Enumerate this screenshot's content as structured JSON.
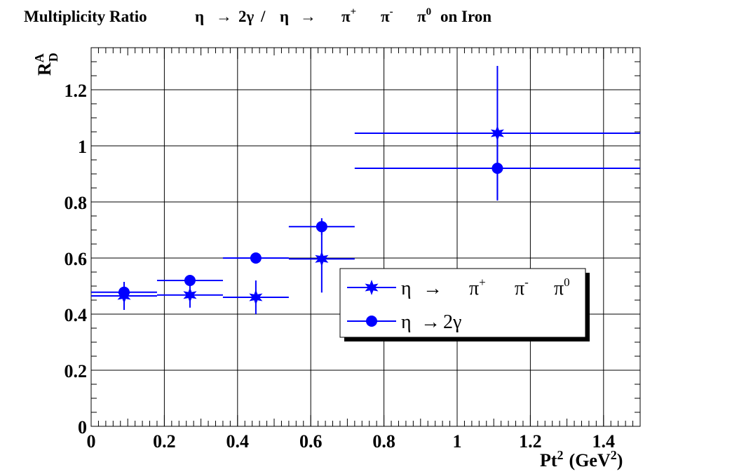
{
  "chart_data": {
    "type": "scatter",
    "title": "Multiplicity Ratio    η  → 2γ /  η  →    π⁺    π⁻    π⁰ on Iron",
    "xlabel": "Pt² (GeV²)",
    "ylabel": "R_D^A",
    "xlim": [
      0,
      1.5
    ],
    "ylim": [
      0,
      1.35
    ],
    "x_ticks": [
      0,
      0.2,
      0.4,
      0.6,
      0.8,
      1,
      1.2,
      1.4
    ],
    "y_ticks": [
      0,
      0.2,
      0.4,
      0.6,
      0.8,
      1,
      1.2
    ],
    "grid": true,
    "legend_position": "center-right",
    "series": [
      {
        "name": "η  →    π⁺    π⁻    π⁰",
        "marker": "star",
        "color": "#0000ff",
        "points": [
          {
            "x": 0.09,
            "y": 0.465,
            "xerr": 0.09,
            "yerr": 0.05
          },
          {
            "x": 0.27,
            "y": 0.468,
            "xerr": 0.09,
            "yerr": 0.045
          },
          {
            "x": 0.45,
            "y": 0.46,
            "xerr": 0.09,
            "yerr": 0.06
          },
          {
            "x": 0.63,
            "y": 0.597,
            "xerr": 0.09,
            "yerr": 0.12
          },
          {
            "x": 1.11,
            "y": 1.045,
            "xerr": 0.39,
            "yerr": 0.24
          }
        ]
      },
      {
        "name": "η  → 2γ",
        "marker": "circle",
        "color": "#0000ff",
        "points": [
          {
            "x": 0.09,
            "y": 0.478,
            "xerr": 0.09,
            "yerr": 0.015
          },
          {
            "x": 0.27,
            "y": 0.52,
            "xerr": 0.09,
            "yerr": 0.01
          },
          {
            "x": 0.45,
            "y": 0.6,
            "xerr": 0.09,
            "yerr": 0.01
          },
          {
            "x": 0.63,
            "y": 0.712,
            "xerr": 0.09,
            "yerr": 0.03
          },
          {
            "x": 1.11,
            "y": 0.92,
            "xerr": 0.39,
            "yerr": 0.11
          }
        ]
      }
    ]
  },
  "labels": {
    "title_prefix": "Multiplicity Ratio",
    "eta": "η",
    "arrow": "→",
    "two_gamma": "2γ",
    "slash": "/",
    "pi": "π",
    "plus": "+",
    "minus": "-",
    "zero": "0",
    "on_iron": "on Iron",
    "x_main": "Pt",
    "x_sup": "2",
    "x_unit_open": "(GeV",
    "x_unit_sup": "2",
    "x_unit_close": ")",
    "y_main": "R",
    "y_sup": "A",
    "y_sub": "D"
  },
  "colors": {
    "series": "#0000ff",
    "frame": "#000000",
    "grid": "#000000",
    "legend_shadow": "#000000"
  }
}
